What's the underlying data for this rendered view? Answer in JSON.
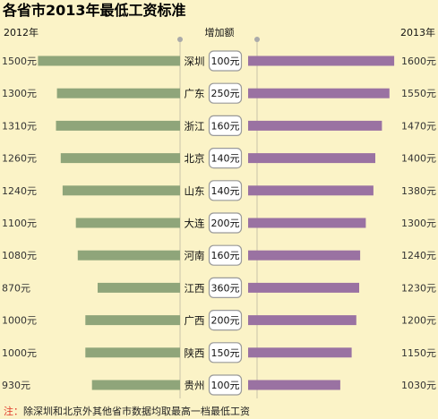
{
  "chart_data": {
    "type": "bar",
    "title": "各省市2013年最低工资标准",
    "left_header": "2012年",
    "middle_header": "增加额",
    "right_header": "2013年",
    "note_label": "注：",
    "note": "除深圳和北京外其他省市数据均取最高一档最低工资",
    "categories": [
      "深圳",
      "广东",
      "浙江",
      "北京",
      "山东",
      "大连",
      "河南",
      "江西",
      "广西",
      "陕西",
      "贵州"
    ],
    "series": [
      {
        "name": "2012年",
        "values": [
          1500,
          1300,
          1310,
          1260,
          1240,
          1100,
          1080,
          870,
          1000,
          1000,
          930
        ],
        "labels": [
          "1500元",
          "1300元",
          "1310元",
          "1260元",
          "1240元",
          "1100元",
          "1080元",
          "870元",
          "1000元",
          "1000元",
          "930元"
        ]
      },
      {
        "name": "2013年",
        "values": [
          1600,
          1550,
          1470,
          1400,
          1380,
          1300,
          1240,
          1230,
          1200,
          1150,
          1030
        ],
        "labels": [
          "1600元",
          "1550元",
          "1470元",
          "1400元",
          "1380元",
          "1300元",
          "1240元",
          "1230元",
          "1200元",
          "1150元",
          "1030元"
        ]
      }
    ],
    "increase": [
      100,
      250,
      160,
      140,
      140,
      200,
      160,
      360,
      200,
      150,
      100
    ],
    "increase_labels": [
      "100元",
      "250元",
      "160元",
      "140元",
      "140元",
      "200元",
      "160元",
      "360元",
      "200元",
      "150元",
      "100元"
    ],
    "colors": {
      "left_bar": "#8fa57a",
      "right_bar": "#9a72a2",
      "background": "#fbf3c7",
      "note_label": "#e03a2a"
    }
  }
}
